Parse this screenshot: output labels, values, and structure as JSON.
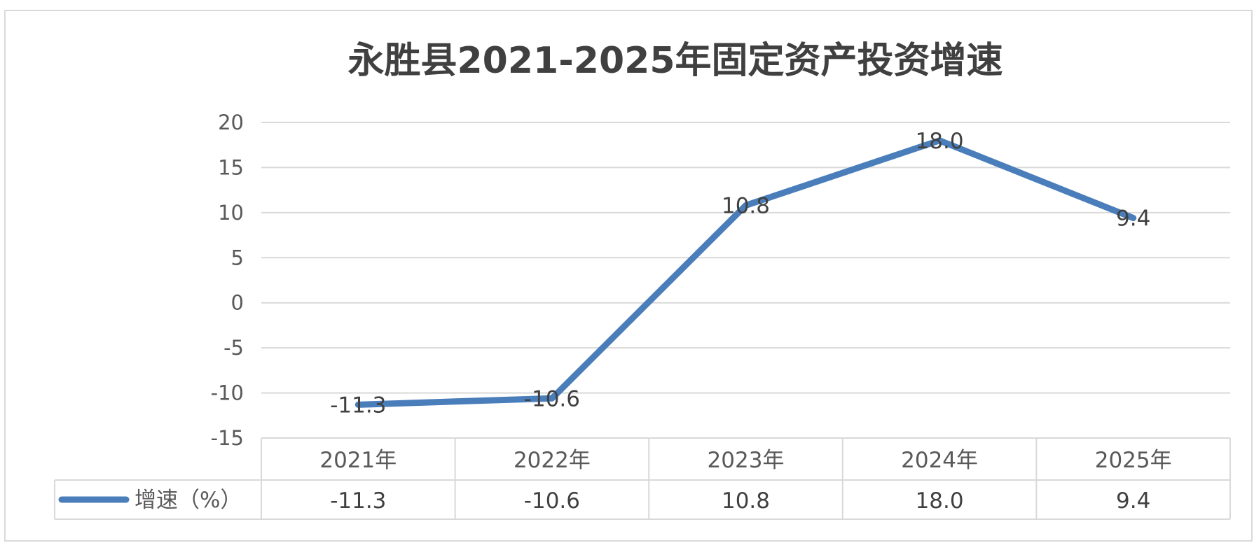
{
  "chart_data": {
    "type": "line",
    "title": "永胜县2021-2025年固定资产投资增速",
    "categories": [
      "2021年",
      "2022年",
      "2023年",
      "2024年",
      "2025年"
    ],
    "series": [
      {
        "name": "增速（%）",
        "values": [
          -11.3,
          -10.6,
          10.8,
          18.0,
          9.4
        ],
        "labels": [
          "-11.3",
          "-10.6",
          "10.8",
          "18.0",
          "9.4"
        ],
        "color": "#4a7ebb"
      }
    ],
    "ylim": [
      -15,
      20
    ],
    "yticks": [
      20,
      15,
      10,
      5,
      0,
      -5,
      -10,
      -15
    ],
    "grid": true,
    "legend": "data-table"
  }
}
